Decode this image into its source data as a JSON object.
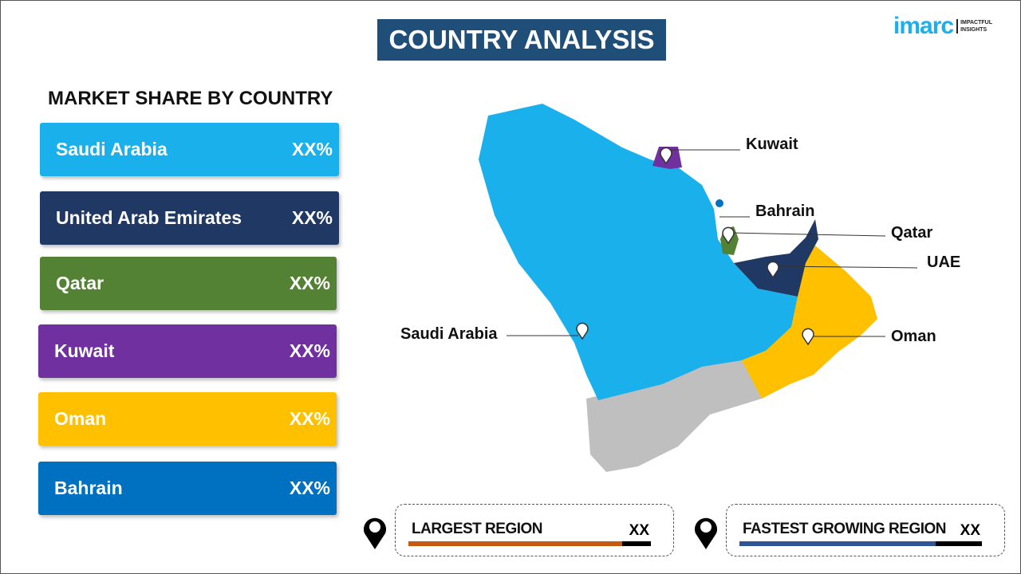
{
  "header": {
    "title": "COUNTRY ANALYSIS",
    "logo_text": "imarc",
    "logo_tagline": "IMPACTFUL INSIGHTS"
  },
  "left": {
    "heading": "MARKET SHARE BY COUNTRY",
    "items": [
      {
        "country": "Saudi Arabia",
        "value": "XX%",
        "color": "#1AB0EC"
      },
      {
        "country": "United Arab Emirates",
        "value": "XX%",
        "color": "#1F3864"
      },
      {
        "country": "Qatar",
        "value": "XX%",
        "color": "#548235"
      },
      {
        "country": "Kuwait",
        "value": "XX%",
        "color": "#7030A0"
      },
      {
        "country": "Oman",
        "value": "XX%",
        "color": "#FFC000"
      },
      {
        "country": "Bahrain",
        "value": "XX%",
        "color": "#0070C0"
      }
    ]
  },
  "map": {
    "labels": [
      "Kuwait",
      "Bahrain",
      "Qatar",
      "UAE",
      "Saudi Arabia",
      "Oman"
    ]
  },
  "footer": {
    "largest": {
      "label": "LARGEST REGION",
      "value": "XX",
      "color": "#C55A11",
      "fill_percent": 88
    },
    "fastest": {
      "label": "FASTEST GROWING REGION",
      "value": "XX",
      "color": "#2F5597",
      "fill_percent": 81
    }
  }
}
